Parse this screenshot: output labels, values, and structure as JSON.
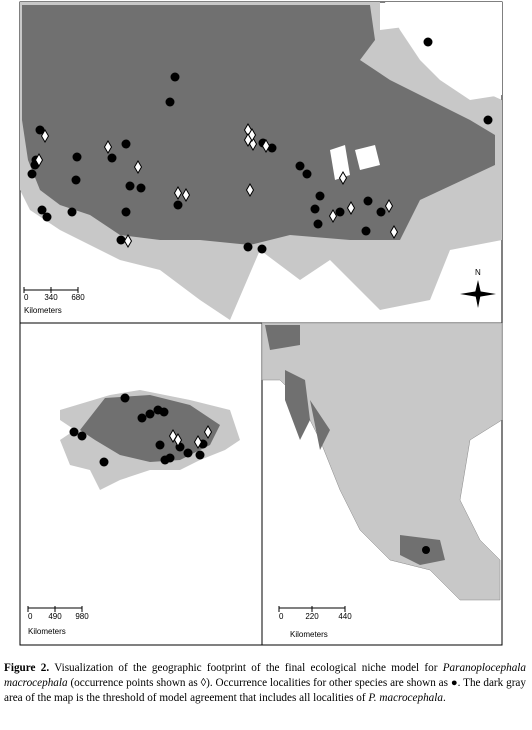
{
  "maps": {
    "conterminous": {
      "scale": {
        "ticks": [
          0,
          340,
          680
        ],
        "unit": "Kilometers"
      },
      "north": "N"
    },
    "alaska": {
      "scale": {
        "ticks": [
          0,
          490,
          980
        ],
        "unit": "Kilometers"
      }
    },
    "mexico": {
      "scale": {
        "ticks": [
          0,
          220,
          440
        ],
        "unit": "Kilometers"
      }
    }
  },
  "caption": {
    "label": "Figure 2.",
    "parts": [
      {
        "text": " Visualization of the geographic footprint of the final ecological niche model for ",
        "italic": false
      },
      {
        "text": "Paranoplocephala macrocephala",
        "italic": true
      },
      {
        "text": " (occurrence points shown as ◊).  Occurrence localities for other species are shown as ●.  The dark gray area of the map is the threshold of model agreement that includes all localities of ",
        "italic": false
      },
      {
        "text": "P. macrocephala",
        "italic": true
      },
      {
        "text": ".",
        "italic": false
      }
    ]
  }
}
